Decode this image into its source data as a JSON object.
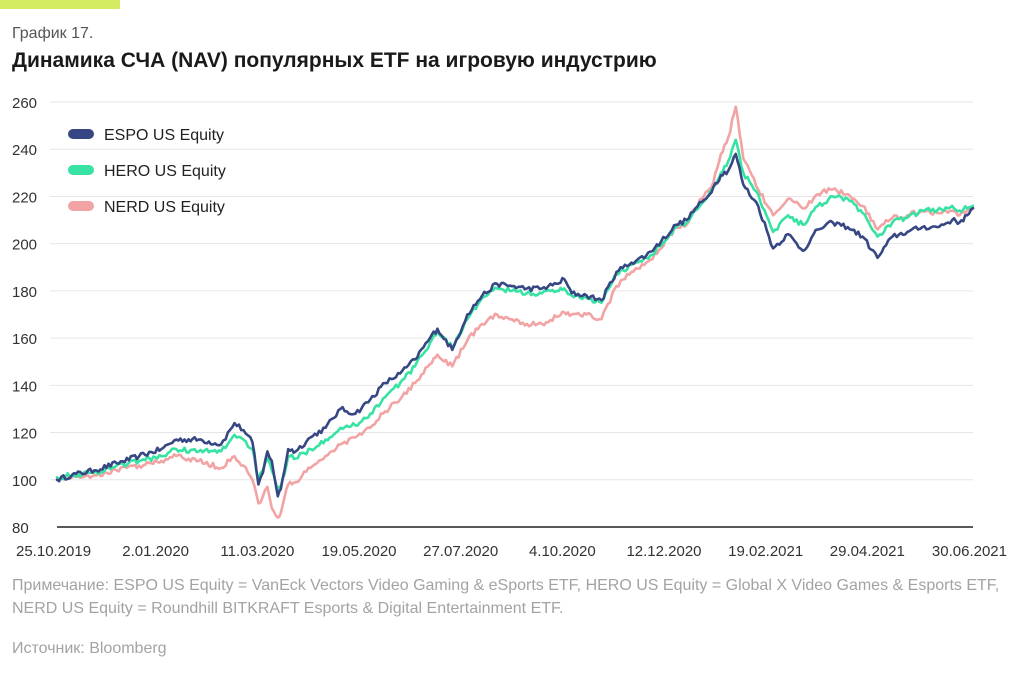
{
  "header": {
    "kicker": "График 17.",
    "title": "Динамика СЧА (NAV) популярных ETF на игровую индустрию"
  },
  "colors": {
    "accent": "#d4ec62",
    "ESPO": "#364783",
    "HERO": "#37e2a2",
    "NERD": "#f2a3a4",
    "grid": "#e6e6e6",
    "axis": "#222222"
  },
  "chart_data": {
    "type": "line",
    "title": "Динамика СЧА (NAV) популярных ETF на игровую индустрию",
    "xlabel": "",
    "ylabel": "",
    "ylim": [
      80,
      260
    ],
    "yticks": [
      "80",
      "100",
      "120",
      "140",
      "160",
      "180",
      "200",
      "220",
      "240",
      "260"
    ],
    "xticks": [
      "25.10.2019",
      "2.01.2020",
      "11.03.2020",
      "19.05.2020",
      "27.07.2020",
      "4.10.2020",
      "12.12.2020",
      "19.02.2021",
      "29.04.2021",
      "30.06.2021"
    ],
    "grid": true,
    "legend_position": "top-left",
    "x_unit": "days since 25.10.2019",
    "x_range": [
      0,
      614
    ],
    "series": [
      {
        "name": "ESPO US Equity",
        "color": "#364783",
        "x": [
          0,
          10,
          25,
          40,
          55,
          70,
          80,
          95,
          110,
          119,
          125,
          131,
          135,
          138,
          141,
          144,
          148,
          150,
          155,
          160,
          170,
          180,
          190,
          200,
          210,
          220,
          230,
          240,
          250,
          255,
          265,
          275,
          285,
          295,
          305,
          315,
          325,
          335,
          340,
          345,
          355,
          365,
          375,
          385,
          395,
          405,
          415,
          422,
          428,
          435,
          440,
          445,
          450,
          455,
          460,
          470,
          480,
          490,
          500,
          510,
          520,
          530,
          540,
          550,
          560,
          570,
          580,
          590,
          600,
          605,
          610,
          614
        ],
        "values": [
          100,
          102,
          104,
          107,
          110,
          113,
          117,
          117,
          115,
          124,
          121,
          116,
          98,
          103,
          112,
          108,
          93,
          96,
          113,
          112,
          118,
          122,
          130,
          128,
          134,
          141,
          145,
          151,
          160,
          164,
          155,
          170,
          178,
          183,
          182,
          181,
          181,
          183,
          185,
          179,
          178,
          176,
          188,
          192,
          195,
          201,
          208,
          210,
          215,
          219,
          224,
          229,
          231,
          238,
          225,
          216,
          198,
          204,
          197,
          206,
          209,
          207,
          203,
          194,
          203,
          205,
          207,
          207,
          210,
          209,
          212,
          215
        ]
      },
      {
        "name": "HERO US Equity",
        "color": "#37e2a2",
        "x": [
          0,
          10,
          25,
          40,
          55,
          70,
          80,
          95,
          110,
          119,
          125,
          131,
          135,
          138,
          141,
          144,
          148,
          150,
          155,
          160,
          170,
          180,
          190,
          200,
          210,
          220,
          230,
          240,
          250,
          255,
          265,
          275,
          285,
          295,
          305,
          315,
          325,
          335,
          340,
          345,
          355,
          365,
          375,
          385,
          395,
          405,
          415,
          422,
          428,
          435,
          440,
          445,
          450,
          455,
          460,
          470,
          480,
          490,
          500,
          510,
          520,
          530,
          540,
          550,
          560,
          570,
          580,
          590,
          600,
          605,
          610,
          614
        ],
        "values": [
          101,
          102,
          103,
          106,
          108,
          110,
          113,
          112,
          112,
          119,
          117,
          113,
          100,
          104,
          109,
          104,
          95,
          97,
          110,
          109,
          113,
          117,
          122,
          123,
          128,
          135,
          141,
          148,
          158,
          163,
          156,
          168,
          177,
          181,
          180,
          179,
          179,
          180,
          181,
          178,
          177,
          175,
          187,
          191,
          194,
          199,
          207,
          209,
          214,
          219,
          224,
          230,
          235,
          244,
          230,
          221,
          205,
          212,
          208,
          216,
          220,
          219,
          213,
          203,
          209,
          211,
          214,
          214,
          216,
          214,
          215,
          216
        ]
      },
      {
        "name": "NERD US Equity",
        "color": "#f2a3a4",
        "x": [
          0,
          10,
          25,
          40,
          55,
          70,
          80,
          95,
          110,
          119,
          125,
          131,
          135,
          138,
          141,
          144,
          148,
          150,
          155,
          160,
          170,
          180,
          190,
          200,
          210,
          220,
          230,
          240,
          250,
          255,
          265,
          275,
          285,
          295,
          305,
          315,
          325,
          335,
          340,
          345,
          355,
          365,
          375,
          385,
          395,
          405,
          415,
          422,
          428,
          435,
          440,
          445,
          450,
          455,
          460,
          470,
          480,
          490,
          500,
          510,
          520,
          530,
          540,
          550,
          560,
          570,
          580,
          590,
          600,
          605,
          610,
          614
        ],
        "values": [
          101,
          101,
          102,
          104,
          106,
          108,
          110,
          108,
          105,
          110,
          106,
          100,
          90,
          93,
          97,
          88,
          84,
          86,
          98,
          99,
          105,
          110,
          115,
          118,
          122,
          129,
          134,
          141,
          149,
          153,
          148,
          159,
          166,
          170,
          168,
          166,
          166,
          169,
          171,
          170,
          170,
          168,
          182,
          188,
          192,
          198,
          207,
          208,
          215,
          222,
          226,
          238,
          245,
          258,
          236,
          223,
          212,
          219,
          215,
          221,
          223,
          221,
          216,
          206,
          211,
          212,
          214,
          213,
          214,
          212,
          214,
          215
        ]
      }
    ]
  },
  "footer": {
    "note": "Примечание: ESPO US Equity = VanEck Vectors Video Gaming & eSports ETF, HERO US Equity = Global X Video Games & Esports ETF, NERD US Equity = Roundhill BITKRAFT Esports & Digital Entertainment ETF.",
    "source": "Источник: Bloomberg"
  }
}
